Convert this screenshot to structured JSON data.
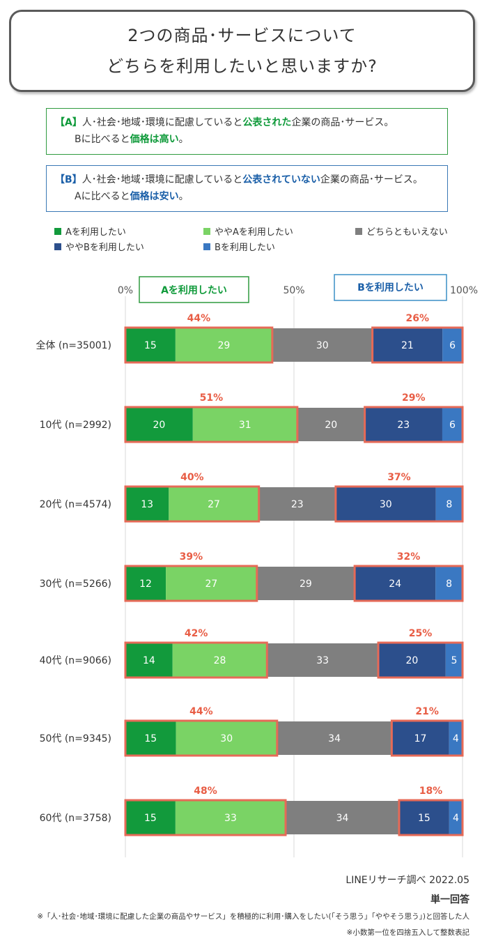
{
  "title": {
    "line1": "2つの商品･サービスについて",
    "line2": "どちらを利用したいと思いますか?"
  },
  "option_a": {
    "tag": "【A】",
    "pre": "人･社会･地域･環境に配慮していると",
    "highlight": "公表された",
    "post": "企業の商品･サービス。",
    "line2_pre": "Bに比べると",
    "line2_highlight": "価格は高い",
    "line2_post": "。"
  },
  "option_b": {
    "tag": "【B】",
    "pre": "人･社会･地域･環境に配慮していると",
    "highlight": "公表されていない",
    "post": "企業の商品･サービス。",
    "line2_pre": "Aに比べると",
    "line2_highlight": "価格は安い",
    "line2_post": "。"
  },
  "colors": {
    "a": "#129a3c",
    "somewhat_a": "#7ad365",
    "neither": "#7f7f7f",
    "somewhat_b": "#2c4f8c",
    "b": "#3a78c2",
    "highlight_border": "#e66a57",
    "percent_label": "#e85d45",
    "header_a": "#0f9a3a",
    "header_b": "#1a5fa8"
  },
  "chart_data": {
    "type": "bar",
    "orientation": "horizontal-stacked-100",
    "axis_ticks": [
      "0%",
      "50%",
      "100%"
    ],
    "header_a_label": "Aを利用したい",
    "header_b_label": "Bを利用したい",
    "series": [
      {
        "name": "Aを利用したい",
        "values": [
          15,
          20,
          13,
          12,
          14,
          15,
          15
        ]
      },
      {
        "name": "ややAを利用したい",
        "values": [
          29,
          31,
          27,
          27,
          28,
          30,
          33
        ]
      },
      {
        "name": "どちらともいえない",
        "values": [
          30,
          20,
          23,
          29,
          33,
          34,
          34
        ]
      },
      {
        "name": "ややBを利用したい",
        "values": [
          21,
          23,
          30,
          24,
          20,
          17,
          15
        ]
      },
      {
        "name": "Bを利用したい",
        "values": [
          6,
          6,
          8,
          8,
          5,
          4,
          4
        ]
      }
    ],
    "categories": [
      "全体 (n=35001)",
      "10代 (n=2992)",
      "20代 (n=4574)",
      "30代 (n=5266)",
      "40代 (n=9066)",
      "50代 (n=9345)",
      "60代 (n=3758)"
    ],
    "a_totals": [
      "44%",
      "51%",
      "40%",
      "39%",
      "42%",
      "44%",
      "48%"
    ],
    "b_totals": [
      "26%",
      "29%",
      "37%",
      "32%",
      "25%",
      "21%",
      "18%"
    ],
    "legend_placement": "top"
  },
  "footer": {
    "source": "LINEリサーチ調べ 2022.05",
    "answer_type": "単一回答",
    "note1": "※「人･社会･地域･環境に配慮した企業の商品やサービス」を積極的に利用･購入をしたい(「そう思う」「ややそう思う」)と回答した人",
    "note2": "※小数第一位を四捨五入して整数表記"
  }
}
